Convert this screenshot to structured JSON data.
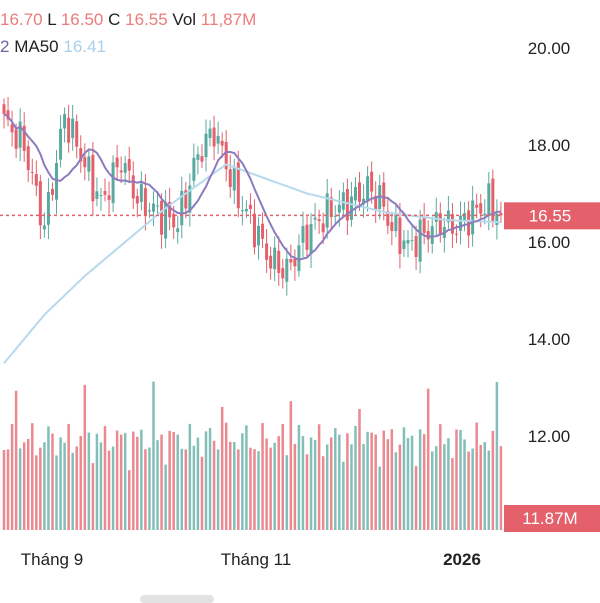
{
  "header": {
    "o_value": "16.70",
    "l_label": "L",
    "l_value": "16.50",
    "c_label": "C",
    "c_value": "16.55",
    "vol_label": "Vol",
    "vol_value": "11,87M",
    "ma_fragment": "2",
    "ma50_label": "MA50",
    "ma50_value": "16.41"
  },
  "chart_data": {
    "type": "candlestick",
    "price_axis": {
      "ticks": [
        "20.00",
        "18.00",
        "16.00",
        "14.00",
        "12.00"
      ],
      "range": [
        11.5,
        20.8
      ]
    },
    "x_axis_labels": [
      "Tháng 9",
      "Tháng 11",
      "2026"
    ],
    "last_price_label": "16.55",
    "last_volume_label": "11.87M",
    "last_close": 16.55,
    "ma50_last": 16.41,
    "colors": {
      "up": "#5aa9a0",
      "down": "#e4606b",
      "ma_short": "#8d7bbd",
      "ma50": "#b7d9ee"
    }
  }
}
